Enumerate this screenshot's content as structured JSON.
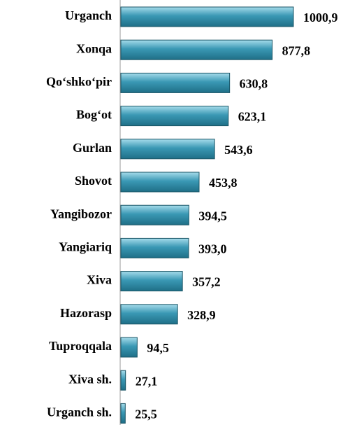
{
  "chart_data": {
    "type": "bar",
    "orientation": "horizontal",
    "categories": [
      "Urganch",
      "Xonqa",
      "Qo‘shko‘pir",
      "Bog‘ot",
      "Gurlan",
      "Shovot",
      "Yangibozor",
      "Yangiariq",
      "Xiva",
      "Hazorasp",
      "Tuproqqala",
      "Xiva sh.",
      "Urganch sh."
    ],
    "values": [
      1000.9,
      877.8,
      630.8,
      623.1,
      543.6,
      453.8,
      394.5,
      393.0,
      357.2,
      328.9,
      94.5,
      27.1,
      25.5
    ],
    "value_labels": [
      "1000,9",
      "877,8",
      "630,8",
      "623,1",
      "543,6",
      "453,8",
      "394,5",
      "393,0",
      "357,2",
      "328,9",
      "94,5",
      "27,1",
      "25,5"
    ],
    "color": "#3a98b4"
  }
}
